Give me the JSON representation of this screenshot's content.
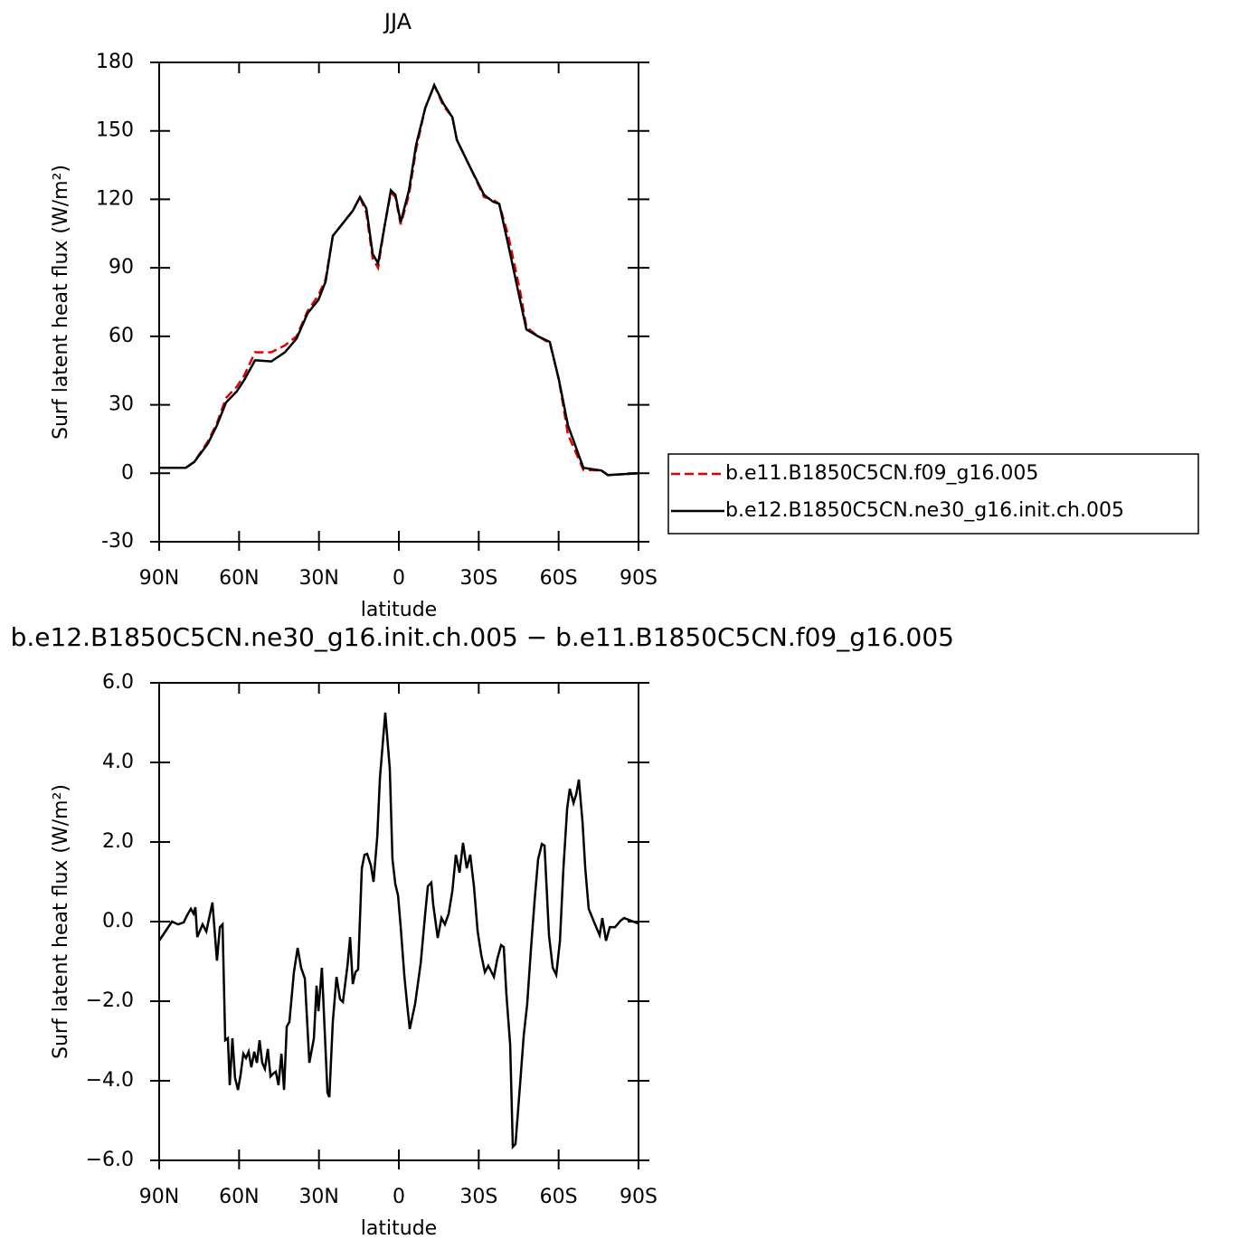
{
  "chart_data": [
    {
      "type": "line",
      "title": "JJA",
      "xlabel": "latitude",
      "ylabel": "Surf latent heat flux (W/m²)",
      "xlim": [
        90,
        -90
      ],
      "xticks": [
        {
          "value": 90,
          "label": "90N"
        },
        {
          "value": 60,
          "label": "60N"
        },
        {
          "value": 30,
          "label": "30N"
        },
        0,
        {
          "value": -30,
          "label": "30S"
        },
        {
          "value": -60,
          "label": "60S"
        },
        {
          "value": -90,
          "label": "90S"
        }
      ],
      "ylim": [
        -30,
        180
      ],
      "yticks": [
        -30,
        0,
        30,
        60,
        90,
        120,
        150,
        180
      ],
      "legend": "right",
      "x": [
        90,
        80,
        76.8,
        71.7,
        68.3,
        64.9,
        60.8,
        58,
        54,
        47.9,
        42.8,
        38.4,
        34.3,
        30.2,
        27.5,
        24.8,
        20.7,
        17.3,
        14.6,
        12.2,
        9.8,
        7.8,
        5.4,
        3,
        1.3,
        -0.7,
        -3.8,
        -6.5,
        -9.9,
        -13.3,
        -16.7,
        -20.1,
        -21.8,
        -26.8,
        -32,
        -35.3,
        -37.7,
        -41.1,
        -45.5,
        -47.9,
        -52.3,
        -56.7,
        -60.1,
        -63.5,
        -69.3,
        -76.1,
        -78.5,
        -90
      ],
      "series": [
        {
          "name": "b.e11.B1850C5CN.f09_g16.005",
          "color": "#e00000",
          "dash": true,
          "values": [
            2.4,
            2.4,
            5,
            14,
            22,
            33,
            38,
            43,
            53,
            53,
            56,
            60,
            71,
            78,
            85,
            104,
            110,
            115,
            121,
            114,
            94,
            90,
            108,
            123,
            121,
            109,
            122,
            142,
            160,
            170,
            161,
            156,
            146,
            134,
            121,
            120,
            118,
            104,
            80,
            64,
            60,
            57,
            41,
            17,
            1.5,
            1.2,
            -0.8,
            0
          ]
        },
        {
          "name": "b.e12.B1850C5CN.ne30_g16.init.ch.005",
          "color": "#000000",
          "dash": false,
          "values": [
            2.4,
            2.4,
            5,
            13,
            21,
            31,
            36,
            41,
            49.5,
            49,
            53,
            59,
            70,
            76,
            84,
            104,
            110,
            115,
            121,
            116,
            96,
            92,
            108,
            124,
            122,
            110,
            124,
            144,
            160,
            170,
            162,
            156,
            146,
            134,
            122,
            119,
            118,
            100,
            76,
            63,
            60,
            57.5,
            41,
            21,
            2.4,
            1.2,
            -0.8,
            0
          ]
        }
      ]
    },
    {
      "type": "line",
      "title": "b.e12.B1850C5CN.ne30_g16.init.ch.005 − b.e11.B1850C5CN.f09_g16.005",
      "xlabel": "latitude",
      "ylabel": "Surf latent heat flux (W/m²)",
      "xlim": [
        90,
        -90
      ],
      "xticks": [
        {
          "value": 90,
          "label": "90N"
        },
        {
          "value": 60,
          "label": "60N"
        },
        {
          "value": 30,
          "label": "30N"
        },
        0,
        {
          "value": -30,
          "label": "30S"
        },
        {
          "value": -60,
          "label": "60S"
        },
        {
          "value": -90,
          "label": "90S"
        }
      ],
      "ylim": [
        -6,
        6
      ],
      "yticks": [
        {
          "value": -6,
          "label": "−6.0"
        },
        {
          "value": -4,
          "label": "−4.0"
        },
        {
          "value": -2,
          "label": "−2.0"
        },
        {
          "value": 0,
          "label": "0.0"
        },
        {
          "value": 2,
          "label": "2.0"
        },
        {
          "value": 4,
          "label": "4.0"
        },
        {
          "value": 6,
          "label": "6.0"
        }
      ],
      "x": [
        90,
        85.2,
        82.9,
        80.8,
        79.5,
        78.1,
        77.1,
        76.4,
        75.7,
        73.7,
        72.3,
        70.0,
        68.3,
        67.2,
        66.2,
        65.2,
        64.2,
        63.5,
        62.5,
        61.5,
        60.4,
        59.4,
        58.4,
        57.4,
        56.4,
        55.4,
        54.3,
        53.3,
        52.3,
        51.3,
        50.3,
        49.2,
        48.2,
        47.2,
        46.2,
        45.2,
        44.1,
        43.1,
        42.1,
        41.1,
        39.4,
        38.0,
        36.7,
        35.3,
        33.6,
        31.9,
        30.9,
        30.2,
        28.9,
        26.8,
        26.1,
        24.8,
        23.4,
        22.1,
        21.0,
        19.3,
        18.3,
        17.3,
        16.3,
        15.3,
        13.9,
        12.9,
        11.9,
        10.5,
        9.5,
        8.1,
        7.1,
        5.1,
        3.4,
        2.4,
        1.3,
        0.3,
        -0.7,
        -2.1,
        -3.1,
        -4.1,
        -6.1,
        -8.2,
        -9.9,
        -10.9,
        -12.2,
        -12.9,
        -14.6,
        -16.0,
        -17.3,
        -18.7,
        -20.1,
        -21.4,
        -22.8,
        -24.1,
        -25.5,
        -26.8,
        -28.2,
        -29.6,
        -30.9,
        -32.3,
        -33.6,
        -35.7,
        -37.0,
        -38.4,
        -39.4,
        -40.4,
        -41.8,
        -42.8,
        -43.8,
        -45.5,
        -46.9,
        -48.2,
        -49.6,
        -51.0,
        -52.3,
        -53.7,
        -54.7,
        -56.4,
        -57.8,
        -59.1,
        -60.5,
        -61.8,
        -63.2,
        -64.2,
        -65.6,
        -66.6,
        -67.6,
        -69.0,
        -70.0,
        -71.3,
        -72.7,
        -74.1,
        -75.4,
        -76.4,
        -77.8,
        -79.2,
        -81.2,
        -83.2,
        -84.6,
        -87.3,
        -90
      ],
      "values": [
        -0.48,
        0.0,
        -0.07,
        -0.02,
        0.16,
        0.32,
        0.2,
        0.36,
        -0.39,
        -0.07,
        -0.25,
        0.48,
        -0.98,
        -0.14,
        -0.07,
        -2.98,
        -2.93,
        -4.11,
        -2.93,
        -3.93,
        -4.23,
        -3.84,
        -3.32,
        -3.43,
        -3.27,
        -3.66,
        -3.27,
        -3.55,
        -2.98,
        -3.55,
        -3.7,
        -3.2,
        -3.89,
        -3.82,
        -3.77,
        -4.11,
        -3.32,
        -4.23,
        -2.64,
        -2.52,
        -1.27,
        -0.66,
        -1.16,
        -1.43,
        -3.55,
        -2.93,
        -1.61,
        -2.25,
        -1.16,
        -4.3,
        -4.41,
        -2.52,
        -1.39,
        -1.95,
        -2.02,
        -1.11,
        -0.39,
        -1.57,
        -1.27,
        -1.2,
        1.34,
        1.68,
        1.7,
        1.41,
        1.0,
        2.14,
        3.61,
        5.25,
        3.84,
        1.57,
        0.93,
        0.66,
        -0.14,
        -1.39,
        -2.07,
        -2.7,
        -2.07,
        -1.05,
        0.2,
        0.89,
        0.98,
        0.43,
        -0.41,
        0.09,
        -0.07,
        0.2,
        0.77,
        1.68,
        1.23,
        1.98,
        1.34,
        1.68,
        0.89,
        -0.25,
        -0.82,
        -1.27,
        -1.11,
        -1.39,
        -0.93,
        -0.59,
        -0.64,
        -1.84,
        -3.09,
        -5.66,
        -5.59,
        -4.11,
        -2.86,
        -2.07,
        -0.7,
        0.55,
        1.57,
        1.95,
        1.91,
        -0.36,
        -1.16,
        -1.34,
        -0.48,
        1.34,
        2.84,
        3.34,
        2.98,
        3.2,
        3.57,
        2.48,
        1.34,
        0.32,
        0.09,
        -0.14,
        -0.34,
        0.09,
        -0.48,
        -0.14,
        -0.14,
        0.02,
        0.09,
        0.02,
        -0.05
      ],
      "color": "#000000"
    }
  ]
}
